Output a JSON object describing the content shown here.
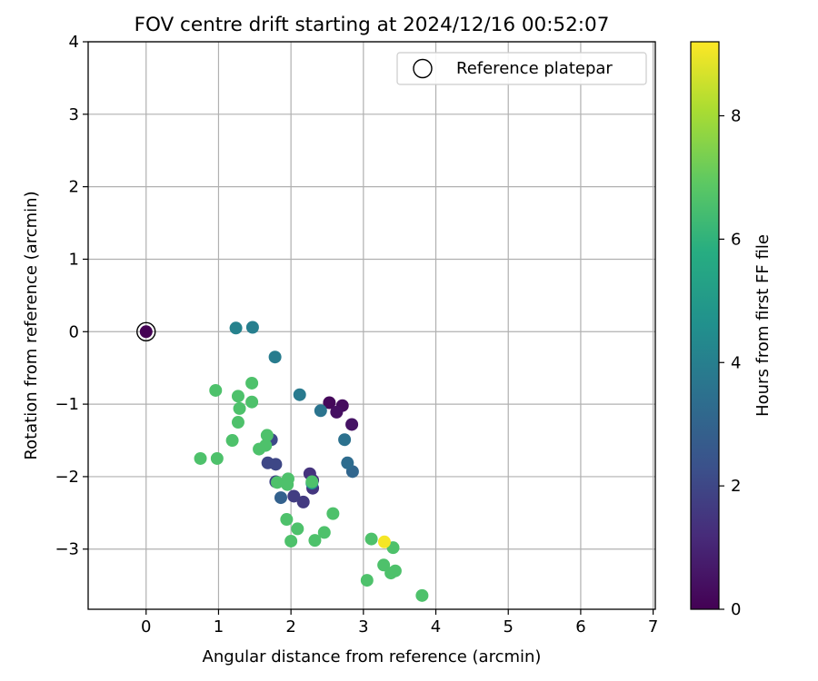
{
  "chart_data": {
    "type": "scatter",
    "title": "FOV centre drift starting at 2024/12/16 00:52:07",
    "xlabel": "Angular distance from reference (arcmin)",
    "ylabel": "Rotation from reference (arcmin)",
    "xlim": [
      -0.8,
      7.03
    ],
    "ylim": [
      -3.83,
      4.0
    ],
    "xticks": [
      "0",
      "1",
      "2",
      "3",
      "4",
      "5",
      "6",
      "7"
    ],
    "yticks": [
      "4",
      "3",
      "2",
      "1",
      "0",
      "−1",
      "−2",
      "−3"
    ],
    "grid": true,
    "legend": {
      "position": "top-right",
      "entries": [
        "Reference platepar"
      ]
    },
    "reference_point": {
      "x": 0,
      "y": 0,
      "hours": 0
    },
    "colorbar": {
      "label": "Hours from first FF file",
      "min": 0,
      "max": 9.2,
      "ticks": [
        "0",
        "2",
        "4",
        "6",
        "8"
      ],
      "colormap": "viridis"
    },
    "series": [
      {
        "points": [
          {
            "x": 0.0,
            "y": 0.0,
            "c": 0.0
          },
          {
            "x": 2.53,
            "y": -0.98,
            "c": 0.2
          },
          {
            "x": 2.71,
            "y": -1.02,
            "c": 0.3
          },
          {
            "x": 2.63,
            "y": -1.11,
            "c": 0.4
          },
          {
            "x": 2.84,
            "y": -1.28,
            "c": 0.5
          },
          {
            "x": 2.3,
            "y": -2.05,
            "c": 1.3
          },
          {
            "x": 2.26,
            "y": -1.96,
            "c": 1.4
          },
          {
            "x": 2.3,
            "y": -2.16,
            "c": 1.5
          },
          {
            "x": 2.17,
            "y": -2.35,
            "c": 1.6
          },
          {
            "x": 2.04,
            "y": -2.27,
            "c": 1.7
          },
          {
            "x": 1.79,
            "y": -2.07,
            "c": 1.9
          },
          {
            "x": 1.68,
            "y": -1.81,
            "c": 2.0
          },
          {
            "x": 1.79,
            "y": -1.83,
            "c": 2.0
          },
          {
            "x": 1.73,
            "y": -1.49,
            "c": 2.1
          },
          {
            "x": 1.86,
            "y": -2.29,
            "c": 2.9
          },
          {
            "x": 2.85,
            "y": -1.93,
            "c": 3.1
          },
          {
            "x": 2.78,
            "y": -1.81,
            "c": 3.3
          },
          {
            "x": 2.74,
            "y": -1.49,
            "c": 3.5
          },
          {
            "x": 2.41,
            "y": -1.09,
            "c": 3.6
          },
          {
            "x": 2.12,
            "y": -0.87,
            "c": 3.8
          },
          {
            "x": 1.78,
            "y": -0.35,
            "c": 3.9
          },
          {
            "x": 1.47,
            "y": 0.06,
            "c": 4.0
          },
          {
            "x": 1.24,
            "y": 0.05,
            "c": 4.1
          },
          {
            "x": 2.29,
            "y": -2.09,
            "c": 4.6
          },
          {
            "x": 0.96,
            "y": -0.81,
            "c": 6.6
          },
          {
            "x": 1.46,
            "y": -0.71,
            "c": 6.6
          },
          {
            "x": 1.27,
            "y": -0.89,
            "c": 6.6
          },
          {
            "x": 1.46,
            "y": -0.97,
            "c": 6.6
          },
          {
            "x": 1.29,
            "y": -1.06,
            "c": 6.6
          },
          {
            "x": 1.27,
            "y": -1.25,
            "c": 6.6
          },
          {
            "x": 1.19,
            "y": -1.5,
            "c": 6.6
          },
          {
            "x": 1.67,
            "y": -1.43,
            "c": 6.6
          },
          {
            "x": 1.65,
            "y": -1.57,
            "c": 6.6
          },
          {
            "x": 1.56,
            "y": -1.62,
            "c": 6.6
          },
          {
            "x": 0.75,
            "y": -1.75,
            "c": 6.6
          },
          {
            "x": 0.98,
            "y": -1.75,
            "c": 6.6
          },
          {
            "x": 1.81,
            "y": -2.08,
            "c": 6.6
          },
          {
            "x": 1.96,
            "y": -2.03,
            "c": 6.6
          },
          {
            "x": 1.95,
            "y": -2.11,
            "c": 6.6
          },
          {
            "x": 2.29,
            "y": -2.07,
            "c": 6.6
          },
          {
            "x": 1.94,
            "y": -2.59,
            "c": 6.6
          },
          {
            "x": 2.09,
            "y": -2.72,
            "c": 6.6
          },
          {
            "x": 2.0,
            "y": -2.89,
            "c": 6.6
          },
          {
            "x": 2.33,
            "y": -2.88,
            "c": 6.6
          },
          {
            "x": 2.46,
            "y": -2.77,
            "c": 6.6
          },
          {
            "x": 2.58,
            "y": -2.51,
            "c": 6.6
          },
          {
            "x": 3.11,
            "y": -2.86,
            "c": 6.6
          },
          {
            "x": 3.41,
            "y": -2.98,
            "c": 6.6
          },
          {
            "x": 3.28,
            "y": -3.22,
            "c": 6.6
          },
          {
            "x": 3.38,
            "y": -3.33,
            "c": 6.6
          },
          {
            "x": 3.44,
            "y": -3.3,
            "c": 6.6
          },
          {
            "x": 3.05,
            "y": -3.43,
            "c": 6.6
          },
          {
            "x": 3.81,
            "y": -3.64,
            "c": 6.6
          },
          {
            "x": 3.29,
            "y": -2.9,
            "c": 9.1
          }
        ]
      }
    ]
  }
}
